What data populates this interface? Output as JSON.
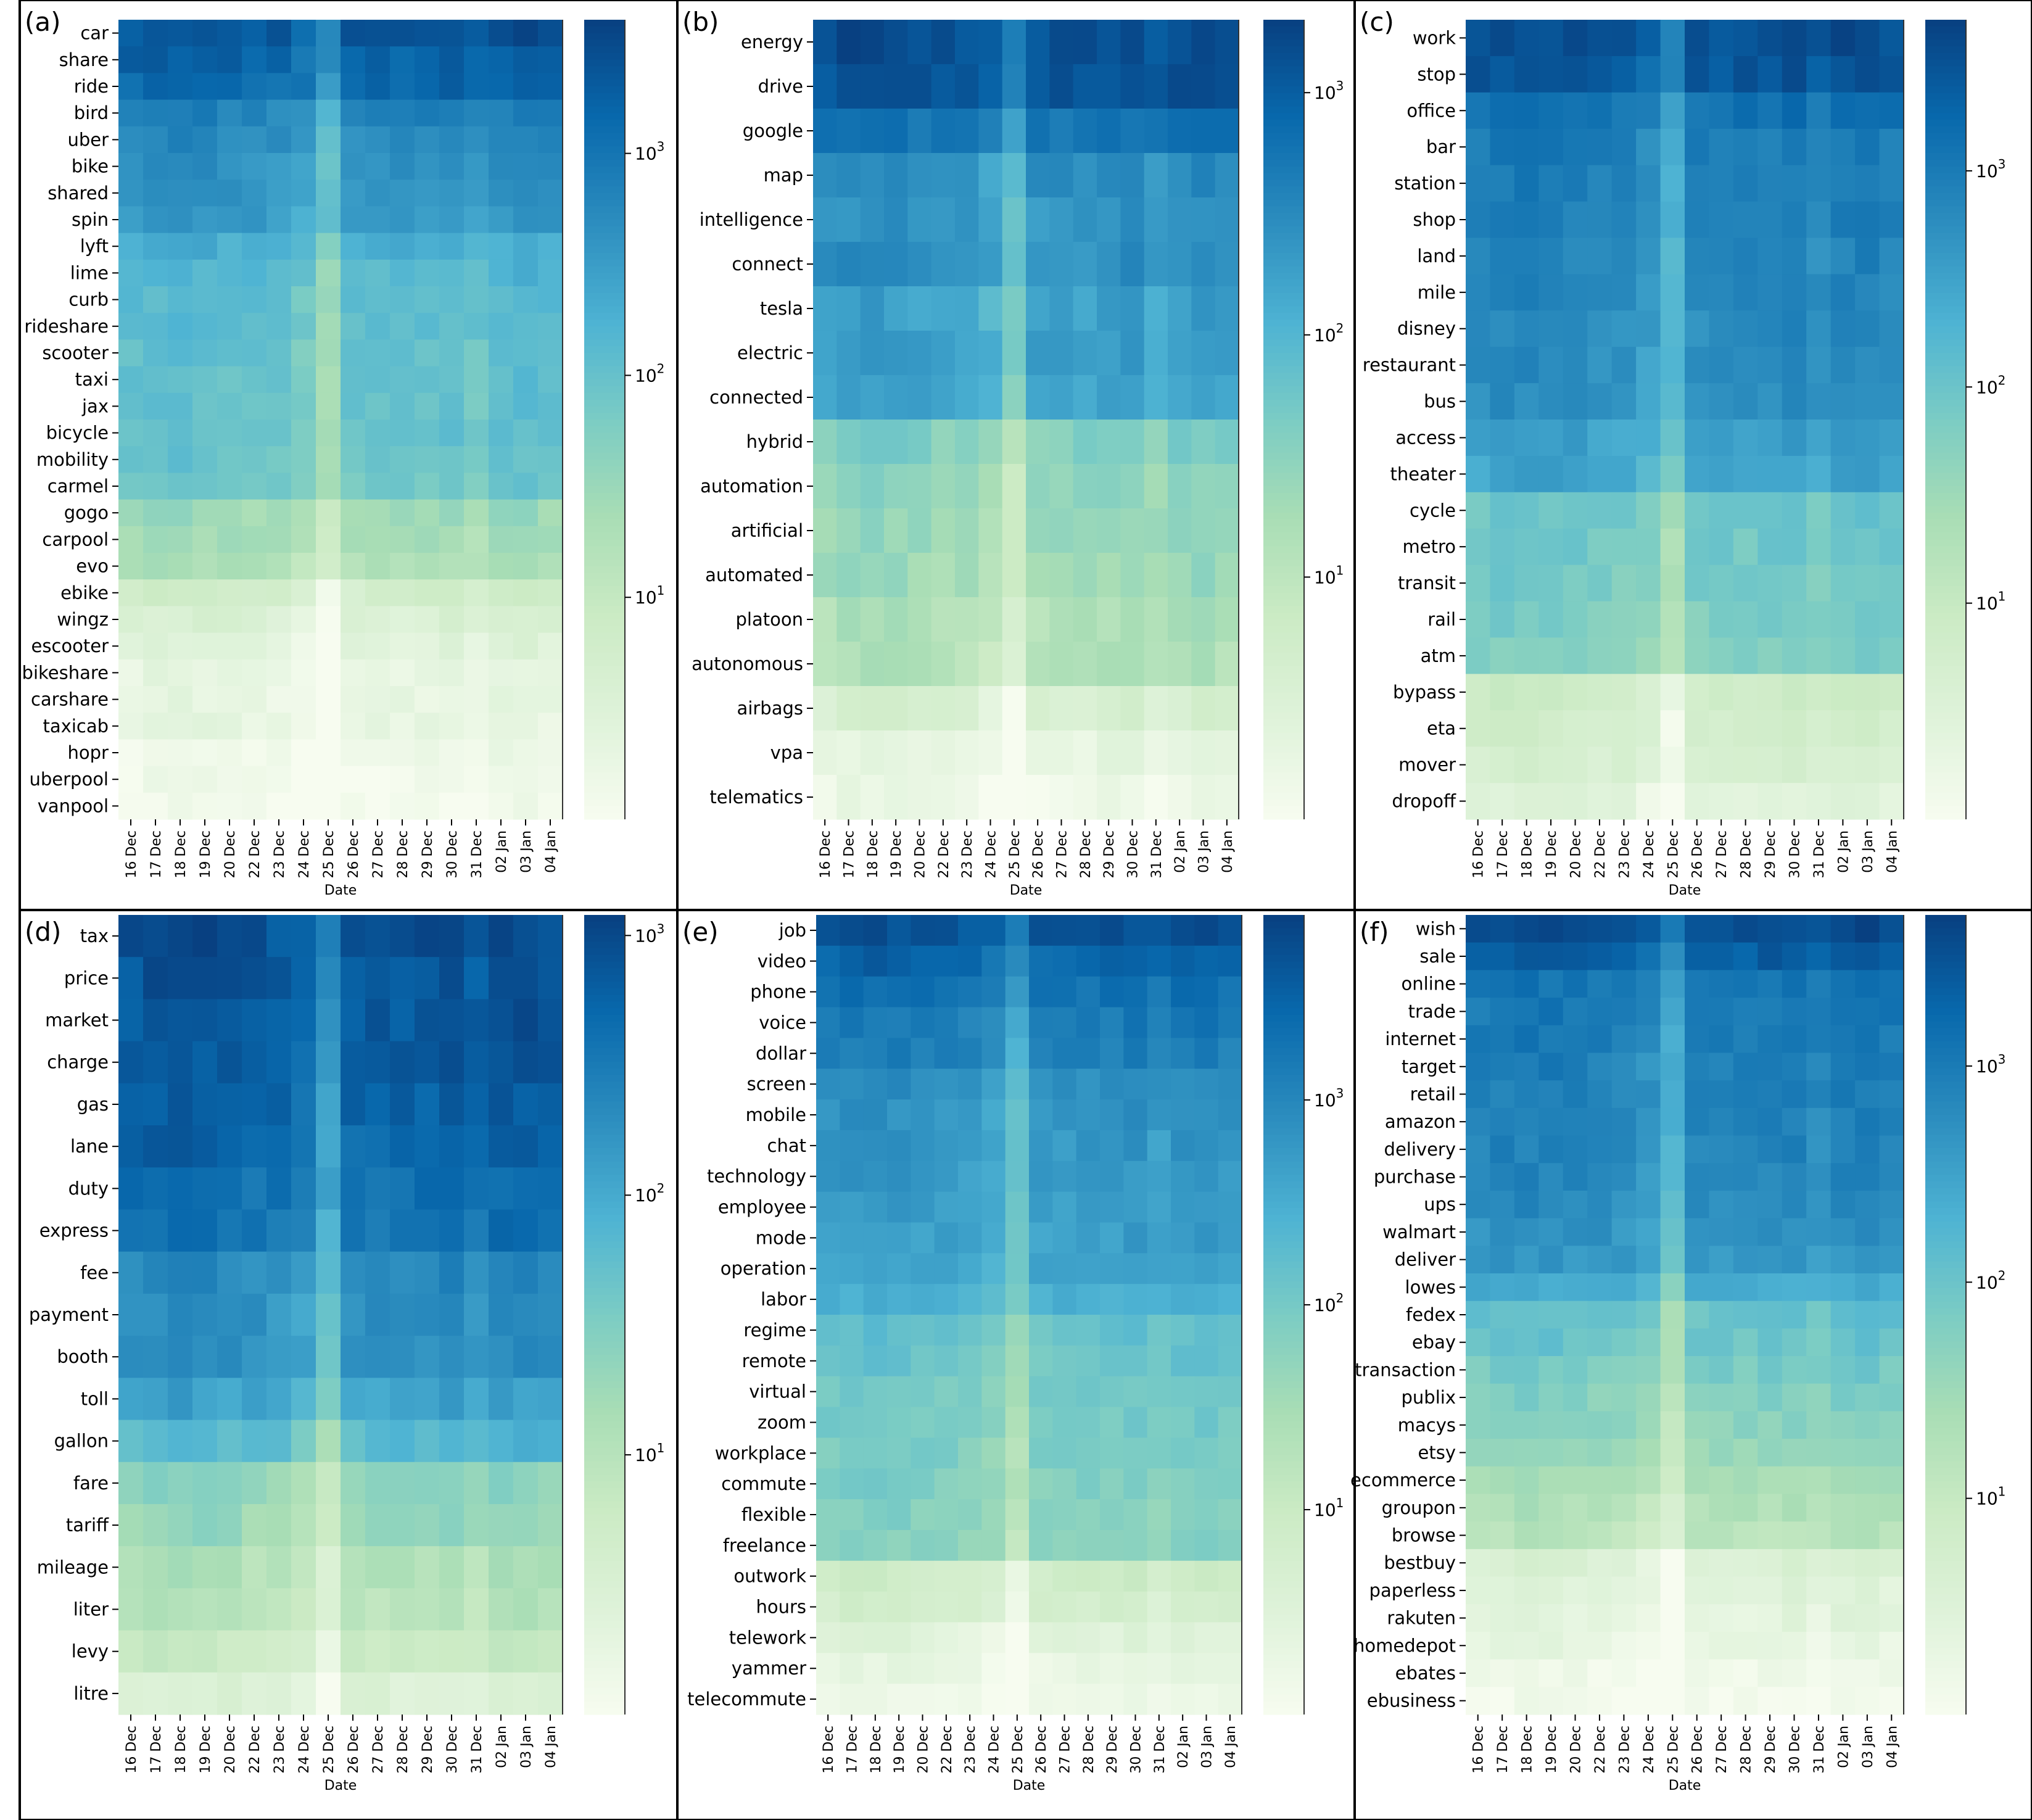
{
  "figure": {
    "xlabel": "Date",
    "dates": [
      "16 Dec",
      "17 Dec",
      "18 Dec",
      "19 Dec",
      "20 Dec",
      "22 Dec",
      "23 Dec",
      "24 Dec",
      "25 Dec",
      "26 Dec",
      "27 Dec",
      "28 Dec",
      "29 Dec",
      "30 Dec",
      "31 Dec",
      "02 Jan",
      "03 Jan",
      "04 Jan"
    ],
    "colors": {
      "low": "#f7fcf0",
      "mid1": "#ccebc5",
      "mid2": "#7bccc4",
      "mid3": "#2b8cbe",
      "high": "#084081",
      "frame": "#000000"
    }
  },
  "chart_data": [
    {
      "type": "heatmap",
      "panel_label": "(a)",
      "scale": "log",
      "colorbar_ticks": [
        {
          "label": "10",
          "exp": "1",
          "value": 10
        },
        {
          "label": "10",
          "exp": "2",
          "value": 100
        },
        {
          "label": "10",
          "exp": "3",
          "value": 1000
        }
      ],
      "vmin": 1,
      "vmax": 4000,
      "rows": [
        "car",
        "share",
        "ride",
        "bird",
        "uber",
        "bike",
        "shared",
        "spin",
        "lyft",
        "lime",
        "curb",
        "rideshare",
        "scooter",
        "taxi",
        "jax",
        "bicycle",
        "mobility",
        "carmel",
        "gogo",
        "carpool",
        "evo",
        "ebike",
        "wingz",
        "escooter",
        "bikeshare",
        "carshare",
        "taxicab",
        "hopr",
        "uberpool",
        "vanpool"
      ],
      "base_values": [
        2500,
        1800,
        1500,
        700,
        550,
        450,
        400,
        380,
        200,
        150,
        130,
        120,
        110,
        105,
        100,
        95,
        90,
        80,
        30,
        25,
        20,
        6,
        4,
        3,
        2,
        2,
        2,
        1.5,
        1.3,
        1.2
      ],
      "xlabel": "Date"
    },
    {
      "type": "heatmap",
      "panel_label": "(b)",
      "scale": "log",
      "colorbar_ticks": [
        {
          "label": "10",
          "exp": "1",
          "value": 10
        },
        {
          "label": "10",
          "exp": "2",
          "value": 100
        },
        {
          "label": "10",
          "exp": "3",
          "value": 1000
        }
      ],
      "vmin": 1,
      "vmax": 2000,
      "rows": [
        "energy",
        "drive",
        "google",
        "map",
        "intelligence",
        "connect",
        "tesla",
        "electric",
        "connected",
        "hybrid",
        "automation",
        "artificial",
        "automated",
        "platoon",
        "autonomous",
        "airbags",
        "vpa",
        "telematics"
      ],
      "base_values": [
        1500,
        1300,
        600,
        300,
        250,
        280,
        180,
        200,
        170,
        40,
        30,
        25,
        22,
        15,
        14,
        4,
        2,
        1.5
      ],
      "xlabel": "Date"
    },
    {
      "type": "heatmap",
      "panel_label": "(c)",
      "scale": "log",
      "colorbar_ticks": [
        {
          "label": "10",
          "exp": "1",
          "value": 10
        },
        {
          "label": "10",
          "exp": "2",
          "value": 100
        },
        {
          "label": "10",
          "exp": "3",
          "value": 1000
        }
      ],
      "vmin": 1,
      "vmax": 5000,
      "rows": [
        "work",
        "stop",
        "office",
        "bar",
        "station",
        "shop",
        "land",
        "mile",
        "disney",
        "restaurant",
        "bus",
        "access",
        "theater",
        "cycle",
        "metro",
        "transit",
        "rail",
        "atm",
        "bypass",
        "eta",
        "mover",
        "dropoff"
      ],
      "base_values": [
        3500,
        3000,
        1500,
        1000,
        900,
        800,
        750,
        700,
        650,
        600,
        550,
        350,
        300,
        100,
        90,
        80,
        70,
        60,
        8,
        6,
        5,
        3
      ],
      "xlabel": "Date"
    },
    {
      "type": "heatmap",
      "panel_label": "(d)",
      "scale": "log",
      "colorbar_ticks": [
        {
          "label": "10",
          "exp": "1",
          "value": 10
        },
        {
          "label": "10",
          "exp": "2",
          "value": 100
        },
        {
          "label": "10",
          "exp": "3",
          "value": 1000
        }
      ],
      "vmin": 1,
      "vmax": 1200,
      "rows": [
        "tax",
        "price",
        "market",
        "charge",
        "gas",
        "lane",
        "duty",
        "express",
        "fee",
        "payment",
        "booth",
        "toll",
        "gallon",
        "fare",
        "tariff",
        "mileage",
        "liter",
        "levy",
        "litre"
      ],
      "base_values": [
        900,
        800,
        750,
        700,
        600,
        550,
        450,
        400,
        220,
        200,
        180,
        120,
        70,
        25,
        20,
        12,
        10,
        6,
        3
      ],
      "xlabel": "Date"
    },
    {
      "type": "heatmap",
      "panel_label": "(e)",
      "scale": "log",
      "colorbar_ticks": [
        {
          "label": "10",
          "exp": "1",
          "value": 10
        },
        {
          "label": "10",
          "exp": "2",
          "value": 100
        },
        {
          "label": "10",
          "exp": "3",
          "value": 1000
        }
      ],
      "vmin": 1,
      "vmax": 8000,
      "rows": [
        "job",
        "video",
        "phone",
        "voice",
        "dollar",
        "screen",
        "mobile",
        "chat",
        "technology",
        "employee",
        "mode",
        "operation",
        "labor",
        "regime",
        "remote",
        "virtual",
        "zoom",
        "workplace",
        "commute",
        "flexible",
        "freelance",
        "outwork",
        "hours",
        "telework",
        "yammer",
        "telecommute"
      ],
      "base_values": [
        5000,
        3000,
        2000,
        1500,
        1300,
        800,
        700,
        650,
        600,
        550,
        500,
        450,
        300,
        150,
        130,
        110,
        100,
        90,
        80,
        70,
        60,
        8,
        6,
        3,
        2,
        1.5
      ],
      "xlabel": "Date"
    },
    {
      "type": "heatmap",
      "panel_label": "(f)",
      "scale": "log",
      "colorbar_ticks": [
        {
          "label": "10",
          "exp": "1",
          "value": 10
        },
        {
          "label": "10",
          "exp": "2",
          "value": 100
        },
        {
          "label": "10",
          "exp": "3",
          "value": 1000
        }
      ],
      "vmin": 1,
      "vmax": 5000,
      "rows": [
        "wish",
        "sale",
        "online",
        "trade",
        "internet",
        "target",
        "retail",
        "amazon",
        "delivery",
        "purchase",
        "ups",
        "walmart",
        "deliver",
        "lowes",
        "fedex",
        "ebay",
        "transaction",
        "publix",
        "macys",
        "etsy",
        "ecommerce",
        "groupon",
        "browse",
        "bestbuy",
        "paperless",
        "rakuten",
        "homedepot",
        "ebates",
        "ebusiness"
      ],
      "base_values": [
        3500,
        2500,
        1200,
        1100,
        1000,
        900,
        850,
        800,
        750,
        700,
        650,
        550,
        450,
        250,
        120,
        100,
        80,
        60,
        50,
        40,
        25,
        20,
        15,
        4,
        3,
        2.5,
        2,
        1.5,
        1.2
      ],
      "xlabel": "Date"
    }
  ]
}
